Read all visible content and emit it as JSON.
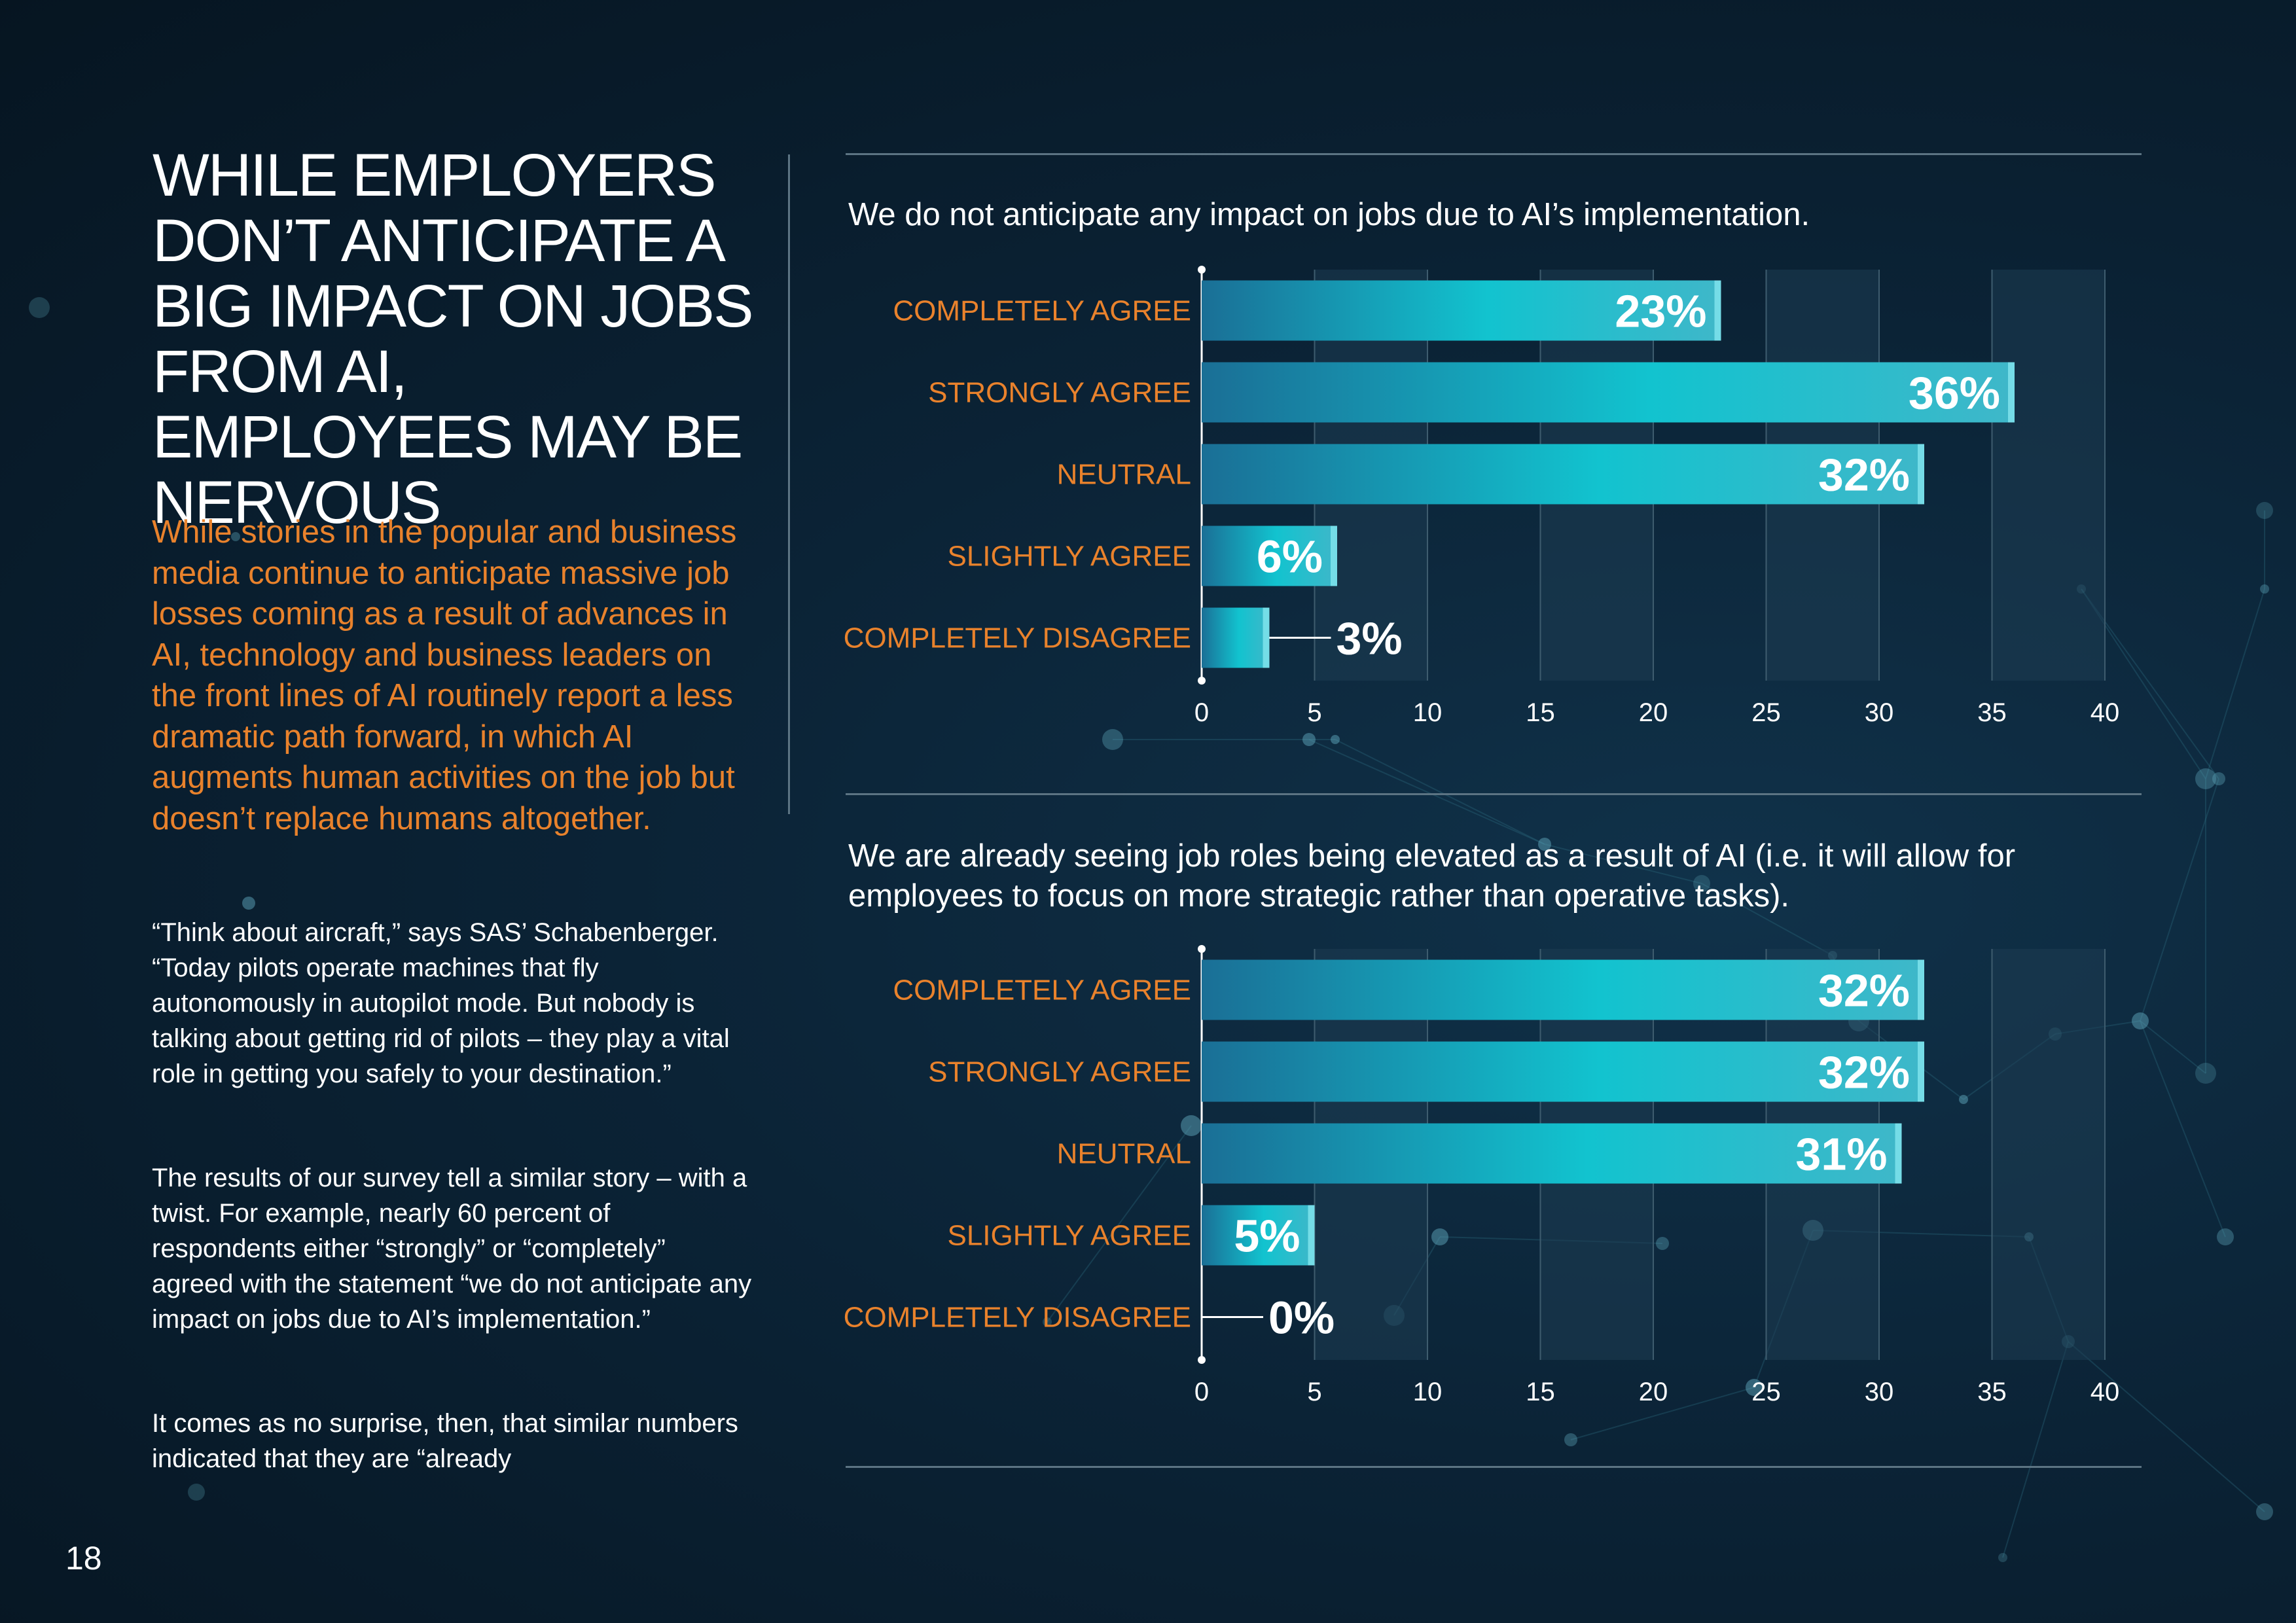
{
  "page": {
    "headline": "WHILE EMPLOYERS DON’T ANTICIPATE A BIG IMPACT ON JOBS FROM AI, EMPLOYEES MAY BE NERVOUS",
    "lead": "While stories in the popular and business media continue to anticipate massive job losses coming as a result of advances in AI, technology and business leaders on the front lines of AI routinely report a less dramatic path forward, in which AI augments human activities on the job but doesn’t replace humans altogether.",
    "paragraphs": [
      "“Think about aircraft,” says SAS’ Schabenberger. “Today pilots operate machines that fly autonomously in autopilot mode. But nobody is talking about getting rid of pilots – they play a vital role in getting you safely to your destination.”",
      "The results of our survey tell a similar story – with a twist. For example, nearly 60 percent of respondents either “strongly” or “completely” agreed with the statement “we do not anticipate any impact on jobs due to AI’s implementation.”",
      "It comes as no surprise, then, that similar numbers indicated that they are “already"
    ],
    "page_number": "18",
    "colors": {
      "accent_orange": "#e9822c",
      "bar_teal": "#12c3cf",
      "bar_dark": "#1a6f96",
      "background": "#0b2336"
    }
  },
  "chart_data": [
    {
      "type": "bar",
      "orientation": "horizontal",
      "title": "We do not anticipate any impact on jobs due to AI’s implementation.",
      "categories": [
        "COMPLETELY AGREE",
        "STRONGLY AGREE",
        "NEUTRAL",
        "SLIGHTLY AGREE",
        "COMPLETELY DISAGREE"
      ],
      "values": [
        23,
        36,
        32,
        6,
        3
      ],
      "data_labels": [
        "23%",
        "36%",
        "32%",
        "6%",
        "3%"
      ],
      "xlim": [
        0,
        40
      ],
      "xticks": [
        "0",
        "5",
        "10",
        "15",
        "20",
        "25",
        "30",
        "35",
        "40"
      ],
      "grid": true
    },
    {
      "type": "bar",
      "orientation": "horizontal",
      "title": "We are already seeing job roles being elevated as a result of AI (i.e. it will allow for employees to focus on more strategic rather than operative tasks).",
      "categories": [
        "COMPLETELY AGREE",
        "STRONGLY AGREE",
        "NEUTRAL",
        "SLIGHTLY AGREE",
        "COMPLETELY DISAGREE"
      ],
      "values": [
        32,
        32,
        31,
        5,
        0
      ],
      "data_labels": [
        "32%",
        "32%",
        "31%",
        "5%",
        "0%"
      ],
      "xlim": [
        0,
        40
      ],
      "xticks": [
        "0",
        "5",
        "10",
        "15",
        "20",
        "25",
        "30",
        "35",
        "40"
      ],
      "grid": true
    }
  ]
}
